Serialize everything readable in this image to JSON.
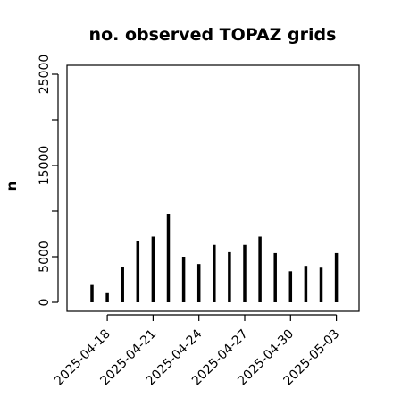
{
  "chart_data": {
    "type": "bar",
    "title": "no. observed TOPAZ grids",
    "xlabel": "",
    "ylabel": "n",
    "ylim": [
      0,
      26000
    ],
    "y_ticks": [
      0,
      5000,
      15000,
      25000
    ],
    "y_tick_labels": [
      "0",
      "5000",
      "15000",
      "25000"
    ],
    "y_minor_ticks": [
      10000,
      20000
    ],
    "x_tick_labels": [
      "2025-04-18",
      "2025-04-21",
      "2025-04-24",
      "2025-04-27",
      "2025-04-30",
      "2025-05-03"
    ],
    "x_tick_colors": [
      "#000000",
      "#000000",
      "#228B22",
      "#000000",
      "#000000",
      "#000000"
    ],
    "categories": [
      "2025-04-17",
      "2025-04-18",
      "2025-04-19",
      "2025-04-20",
      "2025-04-21",
      "2025-04-22",
      "2025-04-23",
      "2025-04-24",
      "2025-04-25",
      "2025-04-26",
      "2025-04-27",
      "2025-04-28",
      "2025-04-29",
      "2025-04-30",
      "2025-05-01",
      "2025-05-02",
      "2025-05-03"
    ],
    "values": [
      1900,
      1000,
      3900,
      6700,
      7200,
      9700,
      5000,
      4200,
      6300,
      5500,
      6300,
      7200,
      5400,
      3400,
      4000,
      3800,
      5400
    ],
    "grid": false,
    "legend": "none"
  }
}
